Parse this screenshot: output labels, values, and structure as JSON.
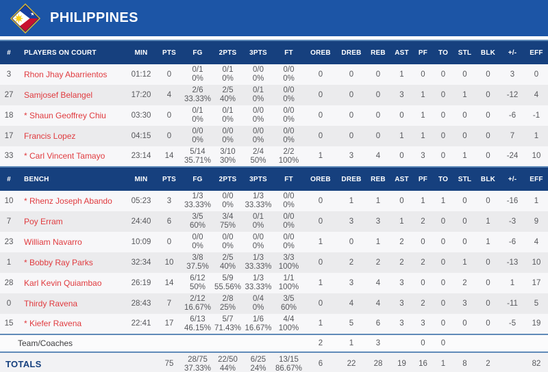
{
  "team": {
    "name": "PHILIPPINES"
  },
  "colors": {
    "banner_blue": "#1c55a6",
    "header_navy": "#16407e",
    "divider_steel_blue": "#5f8ab8",
    "player_name_red": "#e03a3e",
    "stat_gray": "#56575b",
    "row_light": "#f7f7f9",
    "row_gray": "#ebebed",
    "flag_gold": "#d6b43a",
    "flag_blue": "#1840a0",
    "flag_red": "#c8102e",
    "flag_sun_yellow": "#fcd116"
  },
  "columns": {
    "number": "#",
    "on_court": "PLAYERS ON COURT",
    "bench": "BENCH",
    "min": "MIN",
    "pts": "PTS",
    "fg": "FG",
    "two": "2PTS",
    "three": "3PTS",
    "ft": "FT",
    "oreb": "OREB",
    "dreb": "DREB",
    "reb": "REB",
    "ast": "AST",
    "pf": "PF",
    "to": "TO",
    "stl": "STL",
    "blk": "BLK",
    "pm": "+/-",
    "eff": "EFF"
  },
  "on_court": [
    {
      "num": "3",
      "name": "Rhon Jhay Abarrientos",
      "min": "01:12",
      "pts": "0",
      "fg": [
        "0/1",
        "0%"
      ],
      "two": [
        "0/1",
        "0%"
      ],
      "three": [
        "0/0",
        "0%"
      ],
      "ft": [
        "0/0",
        "0%"
      ],
      "oreb": "0",
      "dreb": "0",
      "reb": "0",
      "ast": "1",
      "pf": "0",
      "to": "0",
      "stl": "0",
      "blk": "0",
      "pm": "3",
      "eff": "0"
    },
    {
      "num": "27",
      "name": "Samjosef Belangel",
      "min": "17:20",
      "pts": "4",
      "fg": [
        "2/6",
        "33.33%"
      ],
      "two": [
        "2/5",
        "40%"
      ],
      "three": [
        "0/1",
        "0%"
      ],
      "ft": [
        "0/0",
        "0%"
      ],
      "oreb": "0",
      "dreb": "0",
      "reb": "0",
      "ast": "3",
      "pf": "1",
      "to": "0",
      "stl": "1",
      "blk": "0",
      "pm": "-12",
      "eff": "4"
    },
    {
      "num": "18",
      "name": "* Shaun Geoffrey Chiu",
      "min": "03:30",
      "pts": "0",
      "fg": [
        "0/1",
        "0%"
      ],
      "two": [
        "0/1",
        "0%"
      ],
      "three": [
        "0/0",
        "0%"
      ],
      "ft": [
        "0/0",
        "0%"
      ],
      "oreb": "0",
      "dreb": "0",
      "reb": "0",
      "ast": "0",
      "pf": "1",
      "to": "0",
      "stl": "0",
      "blk": "0",
      "pm": "-6",
      "eff": "-1"
    },
    {
      "num": "17",
      "name": "Francis Lopez",
      "min": "04:15",
      "pts": "0",
      "fg": [
        "0/0",
        "0%"
      ],
      "two": [
        "0/0",
        "0%"
      ],
      "three": [
        "0/0",
        "0%"
      ],
      "ft": [
        "0/0",
        "0%"
      ],
      "oreb": "0",
      "dreb": "0",
      "reb": "0",
      "ast": "1",
      "pf": "1",
      "to": "0",
      "stl": "0",
      "blk": "0",
      "pm": "7",
      "eff": "1"
    },
    {
      "num": "33",
      "name": "* Carl Vincent Tamayo",
      "min": "23:14",
      "pts": "14",
      "fg": [
        "5/14",
        "35.71%"
      ],
      "two": [
        "3/10",
        "30%"
      ],
      "three": [
        "2/4",
        "50%"
      ],
      "ft": [
        "2/2",
        "100%"
      ],
      "oreb": "1",
      "dreb": "3",
      "reb": "4",
      "ast": "0",
      "pf": "3",
      "to": "0",
      "stl": "1",
      "blk": "0",
      "pm": "-24",
      "eff": "10"
    }
  ],
  "bench": [
    {
      "num": "10",
      "name": "* Rhenz Joseph Abando",
      "min": "05:23",
      "pts": "3",
      "fg": [
        "1/3",
        "33.33%"
      ],
      "two": [
        "0/0",
        "0%"
      ],
      "three": [
        "1/3",
        "33.33%"
      ],
      "ft": [
        "0/0",
        "0%"
      ],
      "oreb": "0",
      "dreb": "1",
      "reb": "1",
      "ast": "0",
      "pf": "1",
      "to": "1",
      "stl": "0",
      "blk": "0",
      "pm": "-16",
      "eff": "1"
    },
    {
      "num": "7",
      "name": "Poy Erram",
      "min": "24:40",
      "pts": "6",
      "fg": [
        "3/5",
        "60%"
      ],
      "two": [
        "3/4",
        "75%"
      ],
      "three": [
        "0/1",
        "0%"
      ],
      "ft": [
        "0/0",
        "0%"
      ],
      "oreb": "0",
      "dreb": "3",
      "reb": "3",
      "ast": "1",
      "pf": "2",
      "to": "0",
      "stl": "0",
      "blk": "1",
      "pm": "-3",
      "eff": "9"
    },
    {
      "num": "23",
      "name": "William Navarro",
      "min": "10:09",
      "pts": "0",
      "fg": [
        "0/0",
        "0%"
      ],
      "two": [
        "0/0",
        "0%"
      ],
      "three": [
        "0/0",
        "0%"
      ],
      "ft": [
        "0/0",
        "0%"
      ],
      "oreb": "1",
      "dreb": "0",
      "reb": "1",
      "ast": "2",
      "pf": "0",
      "to": "0",
      "stl": "0",
      "blk": "1",
      "pm": "-6",
      "eff": "4"
    },
    {
      "num": "1",
      "name": "* Bobby Ray Parks",
      "min": "32:34",
      "pts": "10",
      "fg": [
        "3/8",
        "37.5%"
      ],
      "two": [
        "2/5",
        "40%"
      ],
      "three": [
        "1/3",
        "33.33%"
      ],
      "ft": [
        "3/3",
        "100%"
      ],
      "oreb": "0",
      "dreb": "2",
      "reb": "2",
      "ast": "2",
      "pf": "2",
      "to": "0",
      "stl": "1",
      "blk": "0",
      "pm": "-13",
      "eff": "10"
    },
    {
      "num": "28",
      "name": "Karl Kevin Quiambao",
      "min": "26:19",
      "pts": "14",
      "fg": [
        "6/12",
        "50%"
      ],
      "two": [
        "5/9",
        "55.56%"
      ],
      "three": [
        "1/3",
        "33.33%"
      ],
      "ft": [
        "1/1",
        "100%"
      ],
      "oreb": "1",
      "dreb": "3",
      "reb": "4",
      "ast": "3",
      "pf": "0",
      "to": "0",
      "stl": "2",
      "blk": "0",
      "pm": "1",
      "eff": "17"
    },
    {
      "num": "0",
      "name": "Thirdy Ravena",
      "min": "28:43",
      "pts": "7",
      "fg": [
        "2/12",
        "16.67%"
      ],
      "two": [
        "2/8",
        "25%"
      ],
      "three": [
        "0/4",
        "0%"
      ],
      "ft": [
        "3/5",
        "60%"
      ],
      "oreb": "0",
      "dreb": "4",
      "reb": "4",
      "ast": "3",
      "pf": "2",
      "to": "0",
      "stl": "3",
      "blk": "0",
      "pm": "-11",
      "eff": "5"
    },
    {
      "num": "15",
      "name": "* Kiefer Ravena",
      "min": "22:41",
      "pts": "17",
      "fg": [
        "6/13",
        "46.15%"
      ],
      "two": [
        "5/7",
        "71.43%"
      ],
      "three": [
        "1/6",
        "16.67%"
      ],
      "ft": [
        "4/4",
        "100%"
      ],
      "oreb": "1",
      "dreb": "5",
      "reb": "6",
      "ast": "3",
      "pf": "3",
      "to": "0",
      "stl": "0",
      "blk": "0",
      "pm": "-5",
      "eff": "19"
    }
  ],
  "team_row": {
    "label": "Team/Coaches",
    "oreb": "2",
    "dreb": "1",
    "reb": "3",
    "pf": "0",
    "to": "0"
  },
  "totals": {
    "label": "TOTALS",
    "pts": "75",
    "fg": [
      "28/75",
      "37.33%"
    ],
    "two": [
      "22/50",
      "44%"
    ],
    "three": [
      "6/25",
      "24%"
    ],
    "ft": [
      "13/15",
      "86.67%"
    ],
    "oreb": "6",
    "dreb": "22",
    "reb": "28",
    "ast": "19",
    "pf": "16",
    "to": "1",
    "stl": "8",
    "blk": "2",
    "pm": "",
    "eff": "82"
  }
}
